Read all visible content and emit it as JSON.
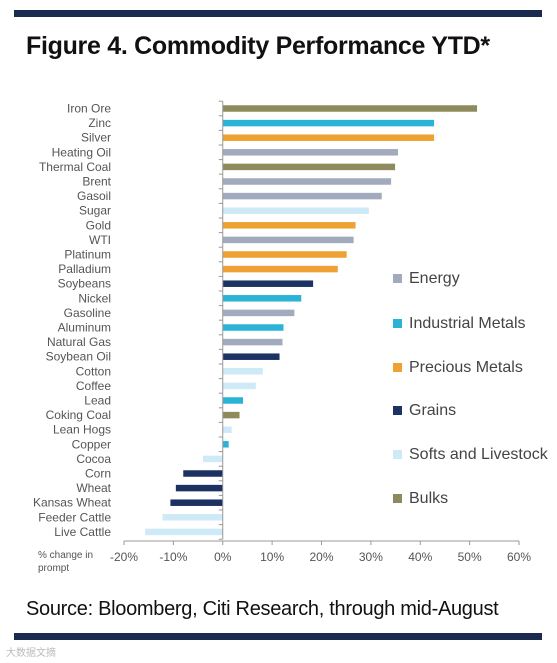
{
  "title": "Figure 4. Commodity Performance YTD*",
  "source": "Source: Bloomberg, Citi Research, through mid-August",
  "watermark": "大数据文摘",
  "colors": {
    "Energy": "#a2aabd",
    "Industrial Metals": "#2ab3d6",
    "Precious Metals": "#eea233",
    "Grains": "#1b3263",
    "Softs and Livestock": "#cdeaf6",
    "Bulks": "#8e8a5d",
    "rule": "#1b2a4f"
  },
  "chart_data": {
    "type": "bar",
    "orientation": "horizontal",
    "xlabel": "% change in prompt",
    "xlim": [
      -20,
      60
    ],
    "xticks": [
      "-20%",
      "-10%",
      "0%",
      "10%",
      "20%",
      "30%",
      "40%",
      "50%",
      "60%"
    ],
    "xtick_values": [
      -20,
      -10,
      0,
      10,
      20,
      30,
      40,
      50,
      60
    ],
    "grid": false,
    "legend_position": "right",
    "legend": [
      "Energy",
      "Industrial Metals",
      "Precious Metals",
      "Grains",
      "Softs and Livestock",
      "Bulks"
    ],
    "categories": [
      "Iron Ore",
      "Zinc",
      "Silver",
      "Heating Oil",
      "Thermal Coal",
      "Brent",
      "Gasoil",
      "Sugar",
      "Gold",
      "WTI",
      "Platinum",
      "Palladium",
      "Soybeans",
      "Nickel",
      "Gasoline",
      "Aluminum",
      "Natural Gas",
      "Soybean Oil",
      "Cotton",
      "Coffee",
      "Lead",
      "Coking Coal",
      "Lean Hogs",
      "Copper",
      "Cocoa",
      "Corn",
      "Wheat",
      "Kansas Wheat",
      "Feeder Cattle",
      "Live Cattle"
    ],
    "values": [
      51.5,
      42.8,
      42.8,
      35.5,
      34.9,
      34.1,
      32.2,
      29.6,
      26.9,
      26.5,
      25.1,
      23.3,
      18.3,
      15.9,
      14.5,
      12.3,
      12.1,
      11.5,
      8.1,
      6.7,
      4.1,
      3.4,
      1.8,
      1.2,
      -4.0,
      -8.0,
      -9.5,
      -10.6,
      -12.2,
      -15.7
    ],
    "groups": [
      "Bulks",
      "Industrial Metals",
      "Precious Metals",
      "Energy",
      "Bulks",
      "Energy",
      "Energy",
      "Softs and Livestock",
      "Precious Metals",
      "Energy",
      "Precious Metals",
      "Precious Metals",
      "Grains",
      "Industrial Metals",
      "Energy",
      "Industrial Metals",
      "Energy",
      "Grains",
      "Softs and Livestock",
      "Softs and Livestock",
      "Industrial Metals",
      "Bulks",
      "Softs and Livestock",
      "Industrial Metals",
      "Softs and Livestock",
      "Grains",
      "Grains",
      "Grains",
      "Softs and Livestock",
      "Softs and Livestock"
    ]
  }
}
